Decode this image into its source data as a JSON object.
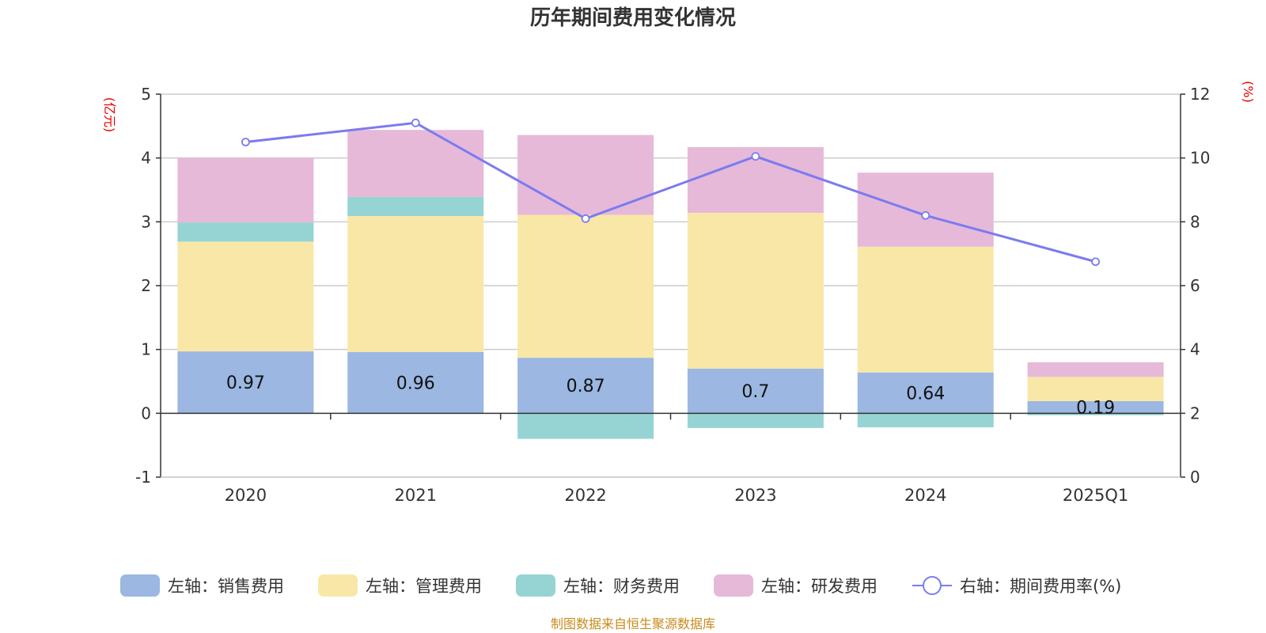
{
  "chart_data": {
    "type": "bar",
    "title": "历年期间费用变化情况",
    "categories": [
      "2020",
      "2021",
      "2022",
      "2023",
      "2024",
      "2025Q1"
    ],
    "left_axis": {
      "unit": "(亿元)",
      "ylim": [
        -1,
        5
      ],
      "ticks": [
        -1,
        0,
        1,
        2,
        3,
        4,
        5
      ]
    },
    "right_axis": {
      "unit": "(%)",
      "ylim": [
        0,
        12
      ],
      "ticks": [
        0,
        2,
        4,
        6,
        8,
        10,
        12
      ]
    },
    "grid": true,
    "legend_position": "bottom",
    "series": [
      {
        "name": "左轴：销售费用",
        "type": "bar",
        "stack": true,
        "axis": "left",
        "color": "#9bb7e2",
        "values": [
          0.97,
          0.96,
          0.87,
          0.7,
          0.64,
          0.19
        ],
        "labels": [
          "0.97",
          "0.96",
          "0.87",
          "0.7",
          "0.64",
          "0.19"
        ]
      },
      {
        "name": "左轴：管理费用",
        "type": "bar",
        "stack": true,
        "axis": "left",
        "color": "#f8e7a7",
        "values": [
          1.72,
          2.13,
          2.24,
          2.44,
          1.97,
          0.38
        ]
      },
      {
        "name": "左轴：财务费用",
        "type": "bar",
        "stack": true,
        "axis": "left",
        "color": "#96d4d4",
        "values": [
          0.3,
          0.3,
          -0.4,
          -0.23,
          -0.22,
          -0.03
        ]
      },
      {
        "name": "左轴：研发费用",
        "type": "bar",
        "stack": true,
        "axis": "left",
        "color": "#e6b9d9",
        "values": [
          1.01,
          1.05,
          1.25,
          1.03,
          1.16,
          0.23
        ]
      },
      {
        "name": "右轴：期间费用率(%)",
        "type": "line",
        "axis": "right",
        "color": "#7b7bef",
        "values": [
          10.5,
          11.1,
          8.1,
          10.05,
          8.2,
          6.75
        ]
      }
    ]
  },
  "source": "制图数据来自恒生聚源数据库"
}
